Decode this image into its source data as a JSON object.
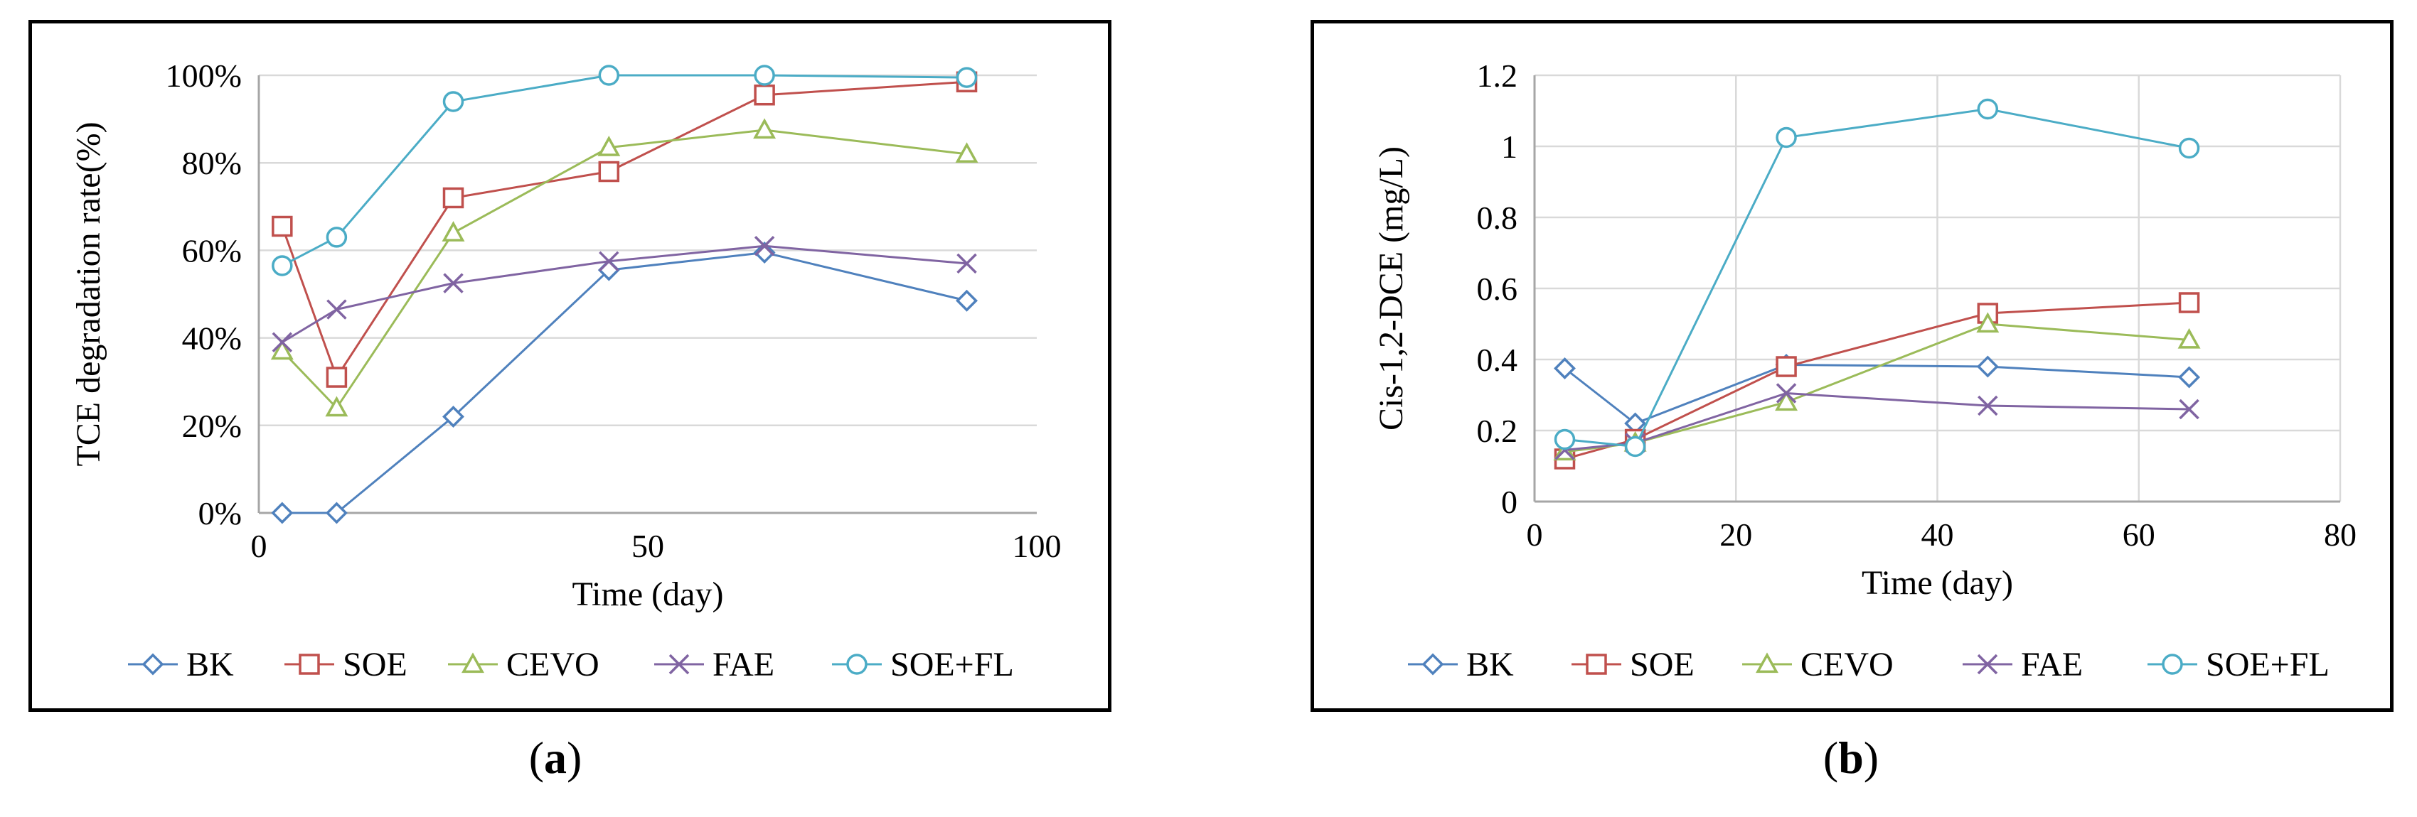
{
  "colors": {
    "BK": "#4f81bd",
    "SOE": "#c0504d",
    "CEVO": "#9bbb59",
    "FAE": "#8064a2",
    "SOE+FL": "#4bacc6",
    "grid": "#d9d9d9",
    "axis": "#a6a6a6"
  },
  "captions": [
    {
      "open": "(",
      "letter": "a",
      "close": ")"
    },
    {
      "open": "(",
      "letter": "b",
      "close": ")"
    }
  ],
  "chart_data": [
    {
      "type": "line",
      "id": "a",
      "title": "",
      "xlabel": "Time (day)",
      "ylabel": "TCE degradation rate(%)",
      "xlim": [
        0,
        100
      ],
      "ylim": [
        0,
        1
      ],
      "xticks": [
        0,
        50,
        100
      ],
      "xtick_labels": [
        "0",
        "50",
        "100"
      ],
      "yticks": [
        0,
        0.2,
        0.4,
        0.6,
        0.8,
        1.0
      ],
      "ytick_labels": [
        "0%",
        "20%",
        "40%",
        "60%",
        "80%",
        "100%"
      ],
      "grid": true,
      "legend": "bottom",
      "series": [
        {
          "name": "BK",
          "marker": "diamond",
          "x": [
            3,
            10,
            25,
            45,
            65,
            91
          ],
          "y": [
            0,
            0,
            0.22,
            0.555,
            0.595,
            0.485
          ]
        },
        {
          "name": "SOE",
          "marker": "square",
          "x": [
            3,
            10,
            25,
            45,
            65,
            91
          ],
          "y": [
            0.655,
            0.31,
            0.72,
            0.78,
            0.955,
            0.985
          ]
        },
        {
          "name": "CEVO",
          "marker": "triangle",
          "x": [
            3,
            10,
            25,
            45,
            65,
            91
          ],
          "y": [
            0.37,
            0.24,
            0.64,
            0.835,
            0.875,
            0.82
          ]
        },
        {
          "name": "FAE",
          "marker": "x",
          "x": [
            3,
            10,
            25,
            45,
            65,
            91
          ],
          "y": [
            0.39,
            0.465,
            0.525,
            0.575,
            0.61,
            0.57
          ]
        },
        {
          "name": "SOE+FL",
          "marker": "circle",
          "x": [
            3,
            10,
            25,
            45,
            65,
            91
          ],
          "y": [
            0.565,
            0.63,
            0.94,
            1.0,
            1.0,
            0.995
          ]
        }
      ]
    },
    {
      "type": "line",
      "id": "b",
      "title": "",
      "xlabel": "Time (day)",
      "ylabel": "Cis-1,2-DCE  (mg/L)",
      "xlim": [
        0,
        80
      ],
      "ylim": [
        0,
        1.2
      ],
      "xticks": [
        0,
        20,
        40,
        60,
        80
      ],
      "xtick_labels": [
        "0",
        "20",
        "40",
        "60",
        "80"
      ],
      "yticks": [
        0,
        0.2,
        0.4,
        0.6,
        0.8,
        1.0,
        1.2
      ],
      "ytick_labels": [
        "0",
        "0.2",
        "0.4",
        "0.6",
        "0.8",
        "1",
        "1.2"
      ],
      "grid": true,
      "legend": "bottom",
      "series": [
        {
          "name": "BK",
          "marker": "diamond",
          "x": [
            3,
            10,
            25,
            45,
            65
          ],
          "y": [
            0.375,
            0.22,
            0.385,
            0.38,
            0.35
          ]
        },
        {
          "name": "SOE",
          "marker": "square",
          "x": [
            3,
            10,
            25,
            45,
            65
          ],
          "y": [
            0.12,
            0.175,
            0.38,
            0.53,
            0.56
          ]
        },
        {
          "name": "CEVO",
          "marker": "triangle",
          "x": [
            3,
            10,
            25,
            45,
            65
          ],
          "y": [
            0.14,
            0.165,
            0.28,
            0.5,
            0.455
          ]
        },
        {
          "name": "FAE",
          "marker": "x",
          "x": [
            3,
            10,
            25,
            45,
            65
          ],
          "y": [
            0.145,
            0.165,
            0.305,
            0.27,
            0.26
          ]
        },
        {
          "name": "SOE+FL",
          "marker": "circle",
          "x": [
            3,
            10,
            25,
            45,
            65
          ],
          "y": [
            0.175,
            0.155,
            1.025,
            1.105,
            0.995
          ]
        }
      ]
    }
  ]
}
